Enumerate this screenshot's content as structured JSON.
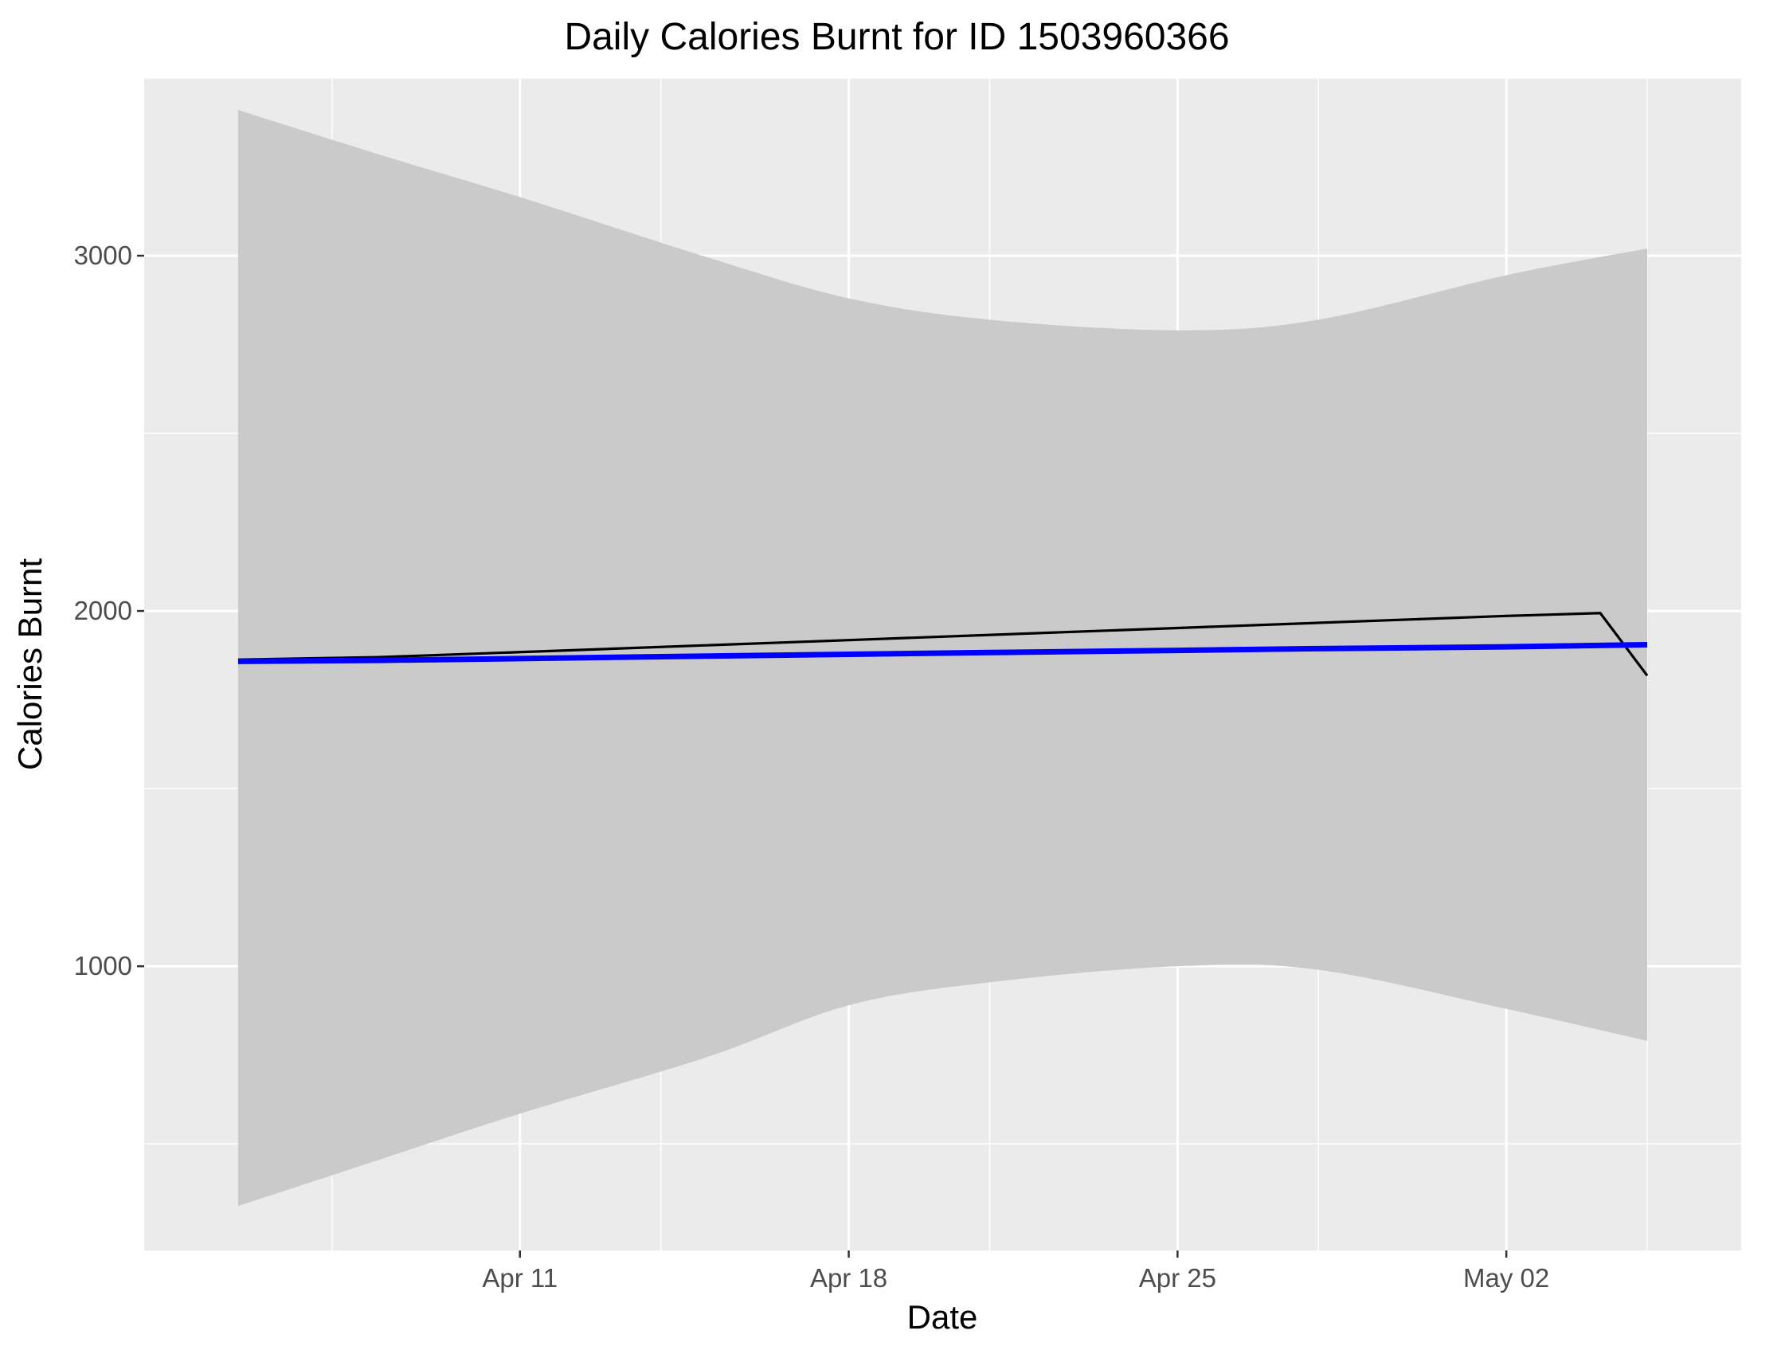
{
  "chart_data": {
    "type": "line",
    "title": "Daily Calories Burnt for ID 1503960366",
    "xlabel": "Date",
    "ylabel": "Calories Burnt",
    "x_axis": {
      "type": "date",
      "range": [
        "2016-04-03",
        "2016-05-07"
      ],
      "ticks": [
        {
          "value": "2016-04-11",
          "label": "Apr 11"
        },
        {
          "value": "2016-04-18",
          "label": "Apr 18"
        },
        {
          "value": "2016-04-25",
          "label": "Apr 25"
        },
        {
          "value": "2016-05-02",
          "label": "May 02"
        }
      ],
      "minor_ticks": [
        "2016-04-07",
        "2016-04-14",
        "2016-04-21",
        "2016-04-28",
        "2016-05-05"
      ]
    },
    "y_axis": {
      "range": [
        200,
        3500
      ],
      "ticks": [
        {
          "value": 1000,
          "label": "1000"
        },
        {
          "value": 2000,
          "label": "2000"
        },
        {
          "value": 3000,
          "label": "3000"
        }
      ],
      "minor_ticks": [
        500,
        1500,
        2500,
        3500
      ]
    },
    "grid": true,
    "legend": "none",
    "series": [
      {
        "kind": "line",
        "color": "#000000",
        "points": [
          {
            "x": "2016-04-05",
            "y": 1863
          },
          {
            "x": "2016-04-08",
            "y": 1870
          },
          {
            "x": "2016-04-12",
            "y": 1889
          },
          {
            "x": "2016-04-18",
            "y": 1918
          },
          {
            "x": "2016-04-25",
            "y": 1952
          },
          {
            "x": "2016-05-02",
            "y": 1986
          },
          {
            "x": "2016-05-04",
            "y": 1994
          },
          {
            "x": "2016-05-05",
            "y": 1818
          }
        ]
      },
      {
        "kind": "smooth",
        "color": "#0000ff",
        "band_color": "#cacaca",
        "points": [
          {
            "x": "2016-04-05",
            "y": 1858,
            "lower": 325,
            "upper": 3410
          },
          {
            "x": "2016-04-08",
            "y": 1861,
            "lower": 455,
            "upper": 3285
          },
          {
            "x": "2016-04-11",
            "y": 1866,
            "lower": 585,
            "upper": 3165
          },
          {
            "x": "2016-04-15",
            "y": 1873,
            "lower": 745,
            "upper": 2995
          },
          {
            "x": "2016-04-18",
            "y": 1878,
            "lower": 890,
            "upper": 2880
          },
          {
            "x": "2016-04-21",
            "y": 1883,
            "lower": 955,
            "upper": 2820
          },
          {
            "x": "2016-04-25",
            "y": 1889,
            "lower": 1000,
            "upper": 2790
          },
          {
            "x": "2016-04-28",
            "y": 1894,
            "lower": 990,
            "upper": 2820
          },
          {
            "x": "2016-05-02",
            "y": 1899,
            "lower": 880,
            "upper": 2945
          },
          {
            "x": "2016-05-05",
            "y": 1905,
            "lower": 790,
            "upper": 3020
          }
        ]
      }
    ]
  }
}
